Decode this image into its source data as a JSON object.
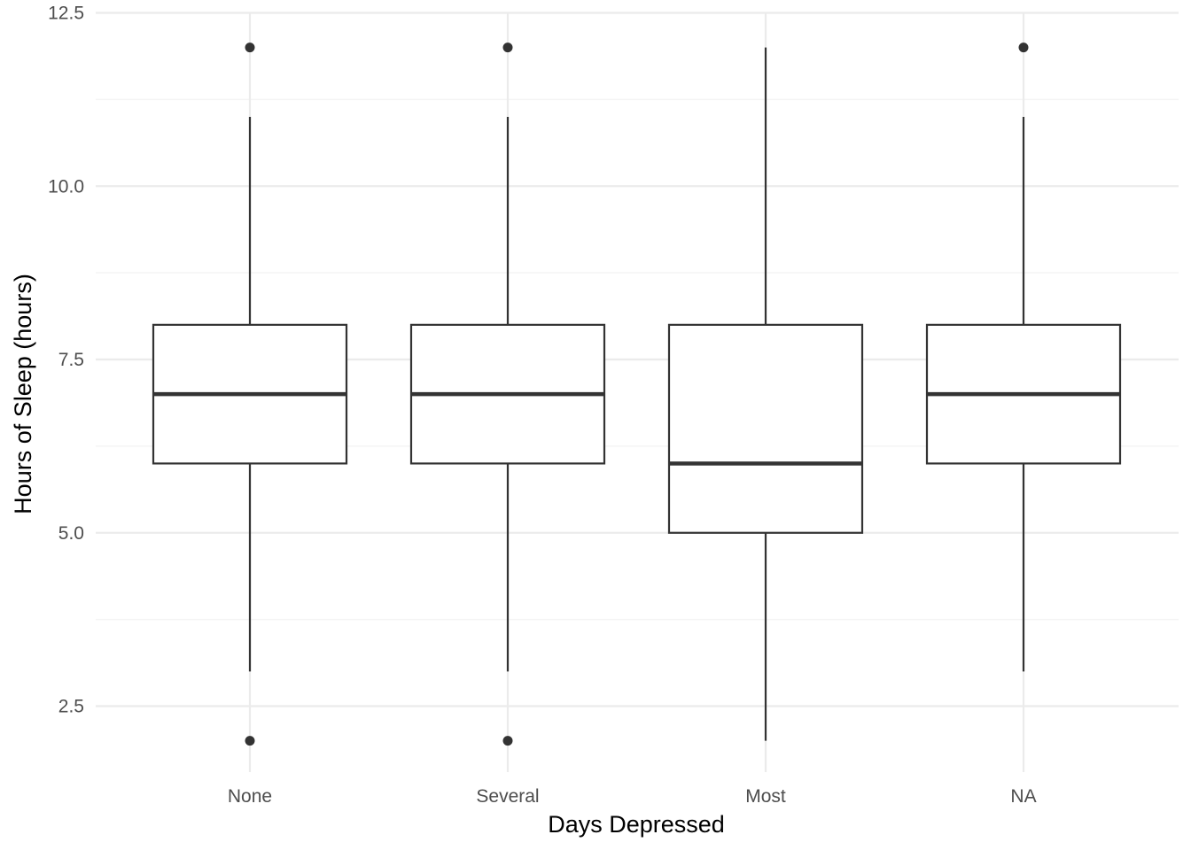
{
  "chart_data": {
    "type": "boxplot",
    "title": "",
    "xlabel": "Days Depressed",
    "ylabel": "Hours of Sleep (hours)",
    "ylim": [
      1.6,
      12.5
    ],
    "yticks": [
      2.5,
      5.0,
      7.5,
      10.0,
      12.5
    ],
    "ytick_labels": [
      "2.5",
      "5.0",
      "7.5",
      "10.0",
      "12.5"
    ],
    "minor_gridlines": [
      3.75,
      6.25,
      8.75,
      11.25
    ],
    "grid": true,
    "legend": "none",
    "categories": [
      "None",
      "Several",
      "Most",
      "NA"
    ],
    "boxes": [
      {
        "category": "None",
        "whisker_low": 3,
        "q1": 6,
        "median": 7,
        "q3": 8,
        "whisker_high": 11,
        "outliers": [
          2,
          12
        ]
      },
      {
        "category": "Several",
        "whisker_low": 3,
        "q1": 6,
        "median": 7,
        "q3": 8,
        "whisker_high": 11,
        "outliers": [
          2,
          12
        ]
      },
      {
        "category": "Most",
        "whisker_low": 2,
        "q1": 5,
        "median": 6,
        "q3": 8,
        "whisker_high": 12,
        "outliers": []
      },
      {
        "category": "NA",
        "whisker_low": 3,
        "q1": 6,
        "median": 7,
        "q3": 8,
        "whisker_high": 11,
        "outliers": [
          12
        ]
      }
    ],
    "colors": {
      "box_line": "#333333",
      "box_fill": "#ffffff",
      "outlier": "#333333",
      "grid_major": "#ebebeb",
      "grid_minor": "#f4f4f4"
    }
  }
}
